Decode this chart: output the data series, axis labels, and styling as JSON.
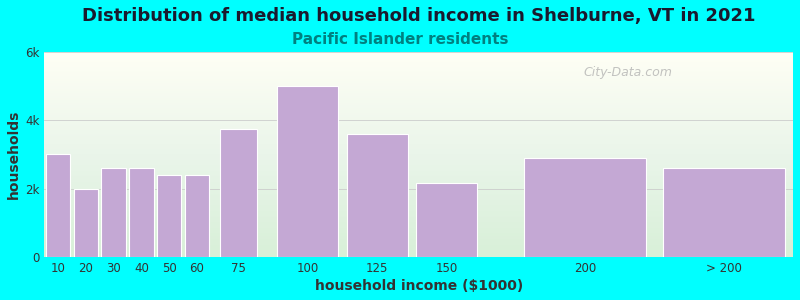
{
  "title": "Distribution of median household income in Shelburne, VT in 2021",
  "subtitle": "Pacific Islander residents",
  "xlabel": "household income ($1000)",
  "ylabel": "households",
  "background_color": "#00FFFF",
  "bar_color": "#C4A8D4",
  "bar_edge_color": "#ffffff",
  "values": [
    3000,
    2000,
    2600,
    2600,
    2400,
    2400,
    3750,
    5000,
    3600,
    2150,
    2900,
    2600
  ],
  "bin_lefts": [
    5,
    15,
    25,
    35,
    45,
    55,
    67.5,
    87.5,
    112.5,
    137.5,
    175,
    225
  ],
  "bin_widths": [
    10,
    10,
    10,
    10,
    10,
    10,
    15,
    25,
    25,
    25,
    50,
    50
  ],
  "xtick_positions": [
    10,
    20,
    30,
    40,
    50,
    60,
    75,
    100,
    125,
    150,
    200,
    250
  ],
  "xtick_labels": [
    "10",
    "20",
    "30",
    "40",
    "50",
    "60",
    "75",
    "100",
    "125",
    "150",
    "200",
    "> 200"
  ],
  "ylim": [
    0,
    6000
  ],
  "xlim": [
    5,
    275
  ],
  "yticks": [
    0,
    2000,
    4000,
    6000
  ],
  "ytick_labels": [
    "0",
    "2k",
    "4k",
    "6k"
  ],
  "title_fontsize": 13,
  "subtitle_fontsize": 11,
  "axis_label_fontsize": 10,
  "tick_fontsize": 8.5,
  "title_color": "#1a1a2e",
  "subtitle_color": "#008080",
  "watermark_text": "City-Data.com",
  "watermark_color": "#aaaaaa"
}
